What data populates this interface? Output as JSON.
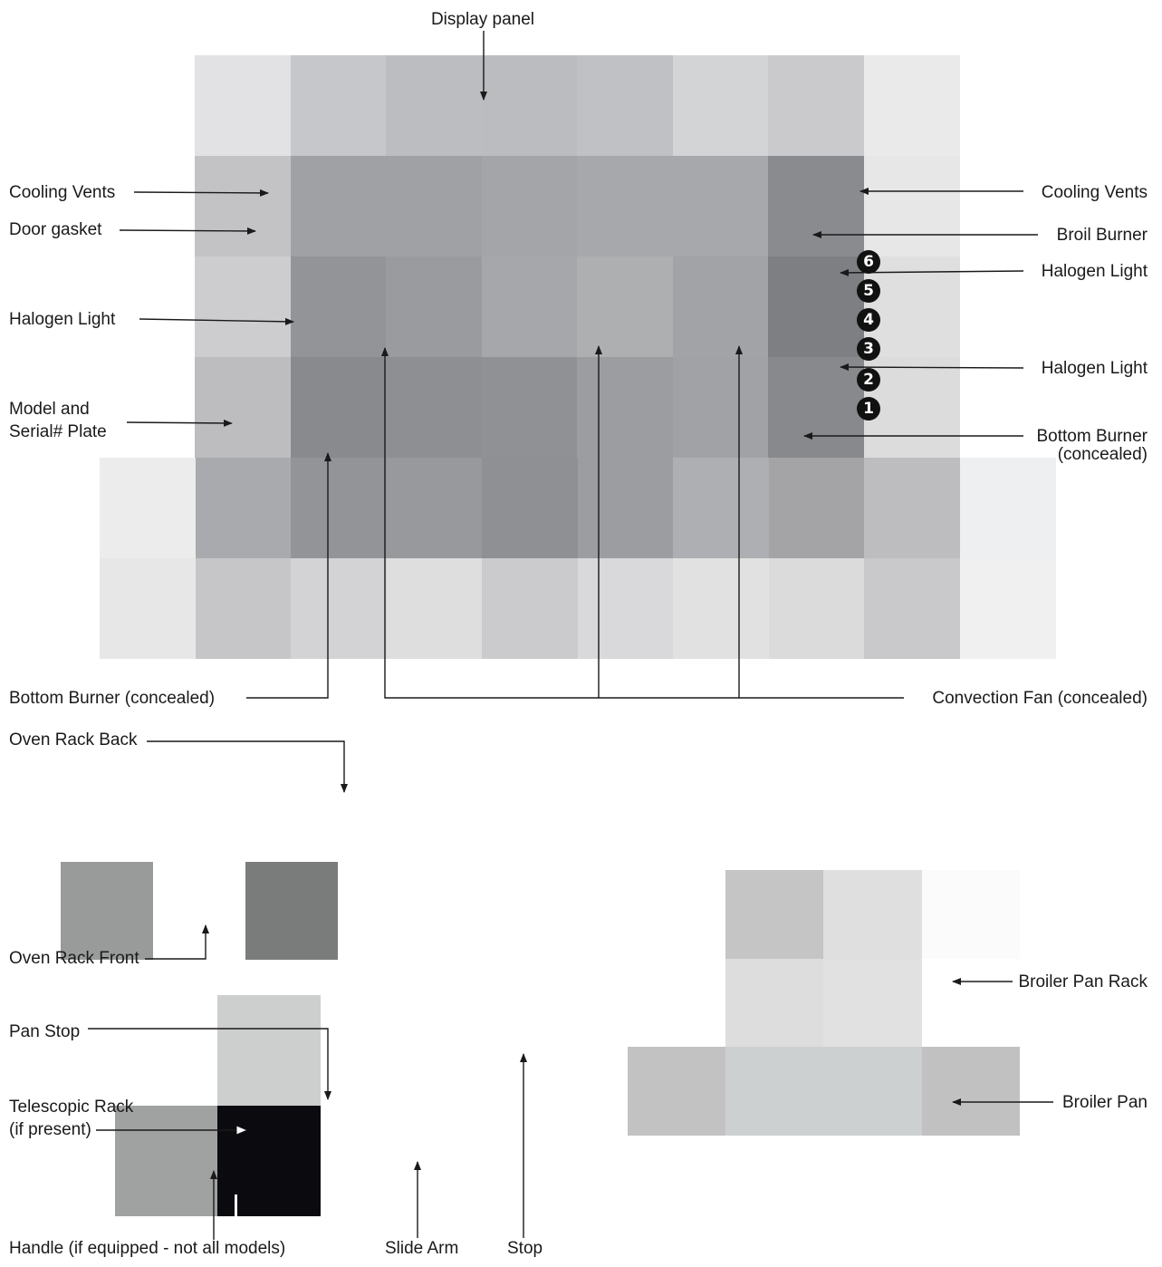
{
  "labels": {
    "display_panel": "Display panel",
    "cooling_vents_left": "Cooling Vents",
    "door_gasket": "Door gasket",
    "halogen_light_left": "Halogen Light",
    "model_serial_line1": "Model and",
    "model_serial_line2": "Serial# Plate",
    "cooling_vents_right": "Cooling Vents",
    "broil_burner": "Broil Burner",
    "halogen_light_right_top": "Halogen Light",
    "halogen_light_right_bottom": "Halogen Light",
    "bottom_burner_right_line1": "Bottom Burner",
    "bottom_burner_right_line2": "(concealed)",
    "bottom_burner_left": "Bottom Burner (concealed)",
    "convection_fan": "Convection Fan (concealed)",
    "oven_rack_back": "Oven Rack Back",
    "oven_rack_front": "Oven Rack Front",
    "pan_stop": "Pan Stop",
    "telescopic_rack_line1": "Telescopic Rack",
    "telescopic_rack_line2": "(if present)",
    "handle": "Handle (if equipped - not all models)",
    "slide_arm": "Slide Arm",
    "stop": "Stop",
    "broiler_pan_rack": "Broiler Pan Rack",
    "broiler_pan": "Broiler Pan"
  },
  "rack_positions": [
    "6",
    "5",
    "4",
    "3",
    "2",
    "1"
  ],
  "colors": {
    "text": "#1a1a1a",
    "line": "#1a1a1a",
    "badge": "#111111"
  }
}
